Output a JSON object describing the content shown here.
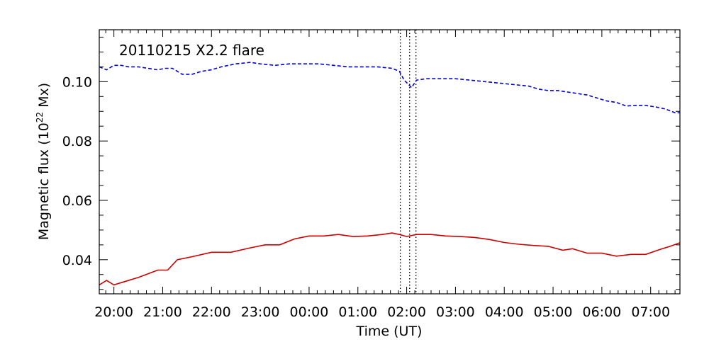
{
  "chart_data": {
    "type": "line",
    "annotation": "20110215 X2.2 flare",
    "xlabel": "Time (UT)",
    "ylabel_main": "Magnetic flux (10",
    "ylabel_sup": "22",
    "ylabel_end": " Mx)",
    "xlim": [
      19.7,
      31.6
    ],
    "ylim": [
      0.0285,
      0.1175
    ],
    "x_tick_values": [
      20,
      21,
      22,
      23,
      24,
      25,
      26,
      27,
      28,
      29,
      30,
      31
    ],
    "x_tick_labels": [
      "20:00",
      "21:00",
      "22:00",
      "23:00",
      "00:00",
      "01:00",
      "02:00",
      "03:00",
      "04:00",
      "05:00",
      "06:00",
      "07:00"
    ],
    "y_tick_values": [
      0.04,
      0.06,
      0.08,
      0.1
    ],
    "y_tick_labels": [
      "0.04",
      "0.06",
      "0.08",
      "0.10"
    ],
    "vertical_lines": [
      25.87,
      26.06,
      26.19
    ],
    "series": [
      {
        "color": "#0000dd",
        "dash": "dashed",
        "x": [
          19.7,
          19.85,
          20.0,
          20.15,
          20.3,
          20.5,
          20.7,
          20.9,
          21.05,
          21.2,
          21.4,
          21.6,
          21.8,
          22.0,
          22.2,
          22.5,
          22.8,
          23.0,
          23.3,
          23.6,
          23.9,
          24.2,
          24.5,
          24.8,
          25.1,
          25.4,
          25.7,
          25.85,
          25.95,
          26.1,
          26.2,
          26.4,
          26.7,
          27.0,
          27.3,
          27.6,
          27.9,
          28.2,
          28.5,
          28.7,
          28.9,
          29.1,
          29.3,
          29.5,
          29.7,
          29.9,
          30.1,
          30.3,
          30.5,
          30.7,
          30.9,
          31.1,
          31.3,
          31.5,
          31.6
        ],
        "y": [
          0.105,
          0.104,
          0.1055,
          0.1055,
          0.105,
          0.105,
          0.1045,
          0.104,
          0.1045,
          0.1045,
          0.1025,
          0.1025,
          0.1035,
          0.104,
          0.105,
          0.106,
          0.1065,
          0.106,
          0.1055,
          0.106,
          0.106,
          0.106,
          0.1055,
          0.105,
          0.105,
          0.105,
          0.1045,
          0.1035,
          0.1005,
          0.098,
          0.1005,
          0.101,
          0.101,
          0.101,
          0.1005,
          0.1,
          0.0995,
          0.099,
          0.0985,
          0.0975,
          0.097,
          0.097,
          0.0965,
          0.096,
          0.0955,
          0.0945,
          0.0935,
          0.093,
          0.0918,
          0.092,
          0.092,
          0.0915,
          0.0908,
          0.0895,
          0.0895
        ]
      },
      {
        "color": "#cc0000",
        "dash": "solid",
        "x": [
          19.7,
          19.85,
          20.0,
          20.2,
          20.5,
          20.9,
          21.1,
          21.3,
          21.6,
          22.0,
          22.4,
          22.8,
          23.1,
          23.4,
          23.7,
          24.0,
          24.3,
          24.6,
          24.9,
          25.2,
          25.5,
          25.7,
          25.85,
          26.0,
          26.2,
          26.5,
          26.8,
          27.1,
          27.4,
          27.7,
          28.0,
          28.3,
          28.6,
          28.9,
          29.2,
          29.4,
          29.7,
          30.0,
          30.3,
          30.6,
          30.9,
          31.2,
          31.4,
          31.6
        ],
        "y": [
          0.0315,
          0.033,
          0.0315,
          0.0325,
          0.034,
          0.0365,
          0.0365,
          0.04,
          0.041,
          0.0425,
          0.0425,
          0.044,
          0.045,
          0.045,
          0.047,
          0.048,
          0.048,
          0.0485,
          0.0478,
          0.048,
          0.0485,
          0.049,
          0.0485,
          0.0478,
          0.0485,
          0.0485,
          0.048,
          0.0478,
          0.0475,
          0.0468,
          0.0458,
          0.0452,
          0.0448,
          0.0445,
          0.0432,
          0.0437,
          0.0422,
          0.0422,
          0.0412,
          0.0418,
          0.0418,
          0.0435,
          0.0445,
          0.0457
        ]
      }
    ]
  }
}
